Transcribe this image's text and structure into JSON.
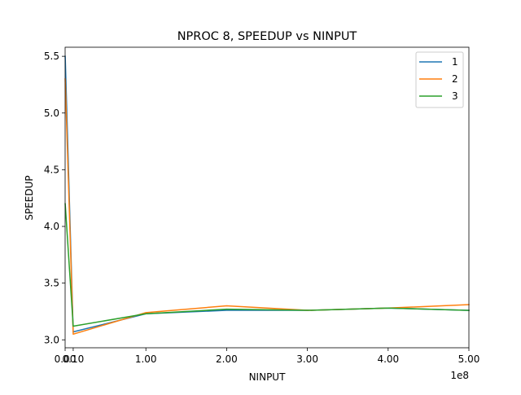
{
  "chart_data": {
    "type": "line",
    "title": "NPROC 8, SPEEDUP vs NINPUT",
    "xlabel": "NINPUT",
    "ylabel": "SPEEDUP",
    "x_offset_label": "1e8",
    "x": [
      100000,
      10000000,
      100000000,
      200000000,
      300000000,
      400000000,
      500000000
    ],
    "xlim": [
      0,
      500000000
    ],
    "ylim": [
      2.93,
      5.58
    ],
    "xticks": [
      {
        "value": 0,
        "label": "0.00"
      },
      {
        "value": 10000000,
        "label": "0.10"
      },
      {
        "value": 100000000,
        "label": "1.00"
      },
      {
        "value": 200000000,
        "label": "2.00"
      },
      {
        "value": 300000000,
        "label": "3.00"
      },
      {
        "value": 400000000,
        "label": "4.00"
      },
      {
        "value": 500000000,
        "label": "5.00"
      }
    ],
    "yticks": [
      {
        "value": 3.0,
        "label": "3.0"
      },
      {
        "value": 3.5,
        "label": "3.5"
      },
      {
        "value": 4.0,
        "label": "4.0"
      },
      {
        "value": 4.5,
        "label": "4.5"
      },
      {
        "value": 5.0,
        "label": "5.0"
      },
      {
        "value": 5.5,
        "label": "5.5"
      }
    ],
    "series": [
      {
        "name": "1",
        "color": "#1f77b4",
        "values": [
          5.5,
          3.07,
          3.23,
          3.26,
          3.26,
          3.28,
          3.26
        ]
      },
      {
        "name": "2",
        "color": "#ff7f0e",
        "values": [
          5.3,
          3.05,
          3.24,
          3.3,
          3.26,
          3.28,
          3.31
        ]
      },
      {
        "name": "3",
        "color": "#2ca02c",
        "values": [
          4.2,
          3.12,
          3.23,
          3.27,
          3.26,
          3.28,
          3.26
        ]
      }
    ],
    "legend_position": "top-right",
    "grid": false
  }
}
